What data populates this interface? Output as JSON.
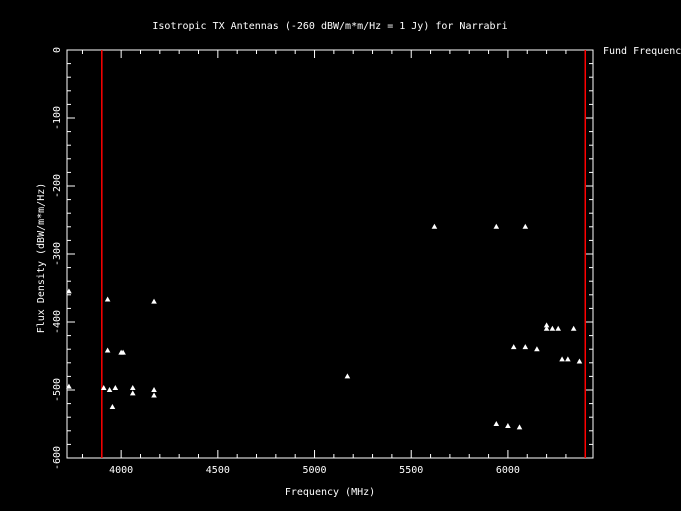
{
  "chart_data": {
    "type": "scatter",
    "title": "Isotropic TX Antennas (-260 dBW/m*m/Hz = 1 Jy) for Narrabri",
    "xlabel": "Frequency (MHz)",
    "ylabel": "Flux Density (dBW/m*m/Hz)",
    "xlim": [
      3720,
      6440
    ],
    "ylim": [
      -600,
      0
    ],
    "xticks": [
      4000,
      4500,
      5000,
      5500,
      6000
    ],
    "yticks": [
      0,
      -100,
      -200,
      -300,
      -400,
      -500,
      -600
    ],
    "vlines": [
      3900,
      6400
    ],
    "vline_legend": "Fund Frequency",
    "colors": {
      "background": "#000000",
      "axes": "#ffffff",
      "points": "#ffffff",
      "vline": "#ff0000"
    },
    "series": [
      {
        "marker": "triangle",
        "points": [
          {
            "x": 3730,
            "y": -355
          },
          {
            "x": 3730,
            "y": -495
          },
          {
            "x": 3910,
            "y": -497
          },
          {
            "x": 3930,
            "y": -367
          },
          {
            "x": 3930,
            "y": -442
          },
          {
            "x": 3940,
            "y": -500
          },
          {
            "x": 3955,
            "y": -525
          },
          {
            "x": 3970,
            "y": -497
          },
          {
            "x": 4000,
            "y": -445
          },
          {
            "x": 4010,
            "y": -445
          },
          {
            "x": 4060,
            "y": -497
          },
          {
            "x": 4060,
            "y": -505
          },
          {
            "x": 4170,
            "y": -370
          },
          {
            "x": 4170,
            "y": -500
          },
          {
            "x": 4170,
            "y": -508
          },
          {
            "x": 5170,
            "y": -480
          },
          {
            "x": 5620,
            "y": -260
          },
          {
            "x": 5940,
            "y": -260
          },
          {
            "x": 5940,
            "y": -550
          },
          {
            "x": 6000,
            "y": -553
          },
          {
            "x": 6030,
            "y": -437
          },
          {
            "x": 6060,
            "y": -555
          },
          {
            "x": 6090,
            "y": -260
          },
          {
            "x": 6090,
            "y": -437
          },
          {
            "x": 6150,
            "y": -440
          },
          {
            "x": 6200,
            "y": -405
          },
          {
            "x": 6200,
            "y": -410
          },
          {
            "x": 6230,
            "y": -410
          },
          {
            "x": 6260,
            "y": -410
          },
          {
            "x": 6280,
            "y": -455
          },
          {
            "x": 6310,
            "y": -455
          },
          {
            "x": 6340,
            "y": -410
          },
          {
            "x": 6370,
            "y": -458
          }
        ]
      }
    ]
  }
}
